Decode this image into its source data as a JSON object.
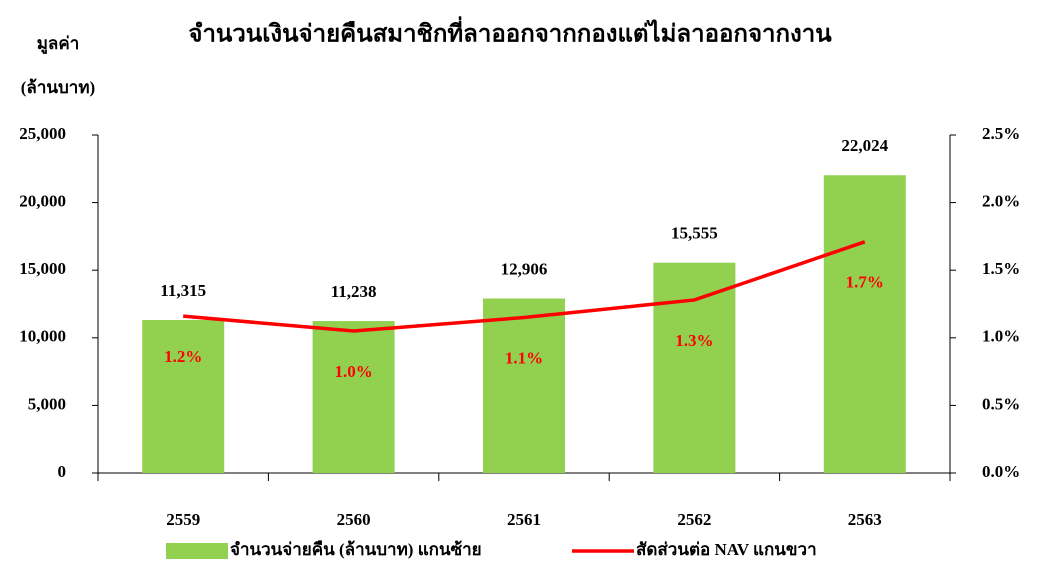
{
  "chart_data": {
    "type": "bar",
    "title": "จำนวนเงินจ่ายคืนสมาชิกที่ลาออกจากกองแต่ไม่ลาออกจากงาน",
    "ylabel": [
      "มูลค่า",
      "(ล้านบาท)"
    ],
    "categories": [
      "2559",
      "2560",
      "2561",
      "2562",
      "2563"
    ],
    "series": [
      {
        "name": "จำนวนจ่ายคืน (ล้านบาท) แกนซ้าย",
        "type": "bar",
        "color": "#92d050",
        "values": [
          11315,
          11238,
          12906,
          15555,
          22024
        ],
        "value_labels": [
          "11,315",
          "11,238",
          "12,906",
          "15,555",
          "22,024"
        ]
      },
      {
        "name": "สัดส่วนต่อ NAV แกนขวา",
        "type": "line",
        "axis": "y2",
        "color": "#ff0000",
        "values": [
          1.16,
          1.05,
          1.15,
          1.28,
          1.71
        ],
        "value_labels": [
          "1.2%",
          "1.0%",
          "1.1%",
          "1.3%",
          "1.7%"
        ]
      }
    ],
    "ylim": [
      0,
      25000
    ],
    "yticks": [
      0,
      {
        "value": 5000,
        "label": "5,000"
      },
      {
        "value": 10000,
        "label": "10,000"
      },
      {
        "value": 15000,
        "label": "15,000"
      },
      {
        "value": 20000,
        "label": "20,000"
      },
      {
        "value": 25000,
        "label": "25,000"
      }
    ],
    "y2lim": [
      0,
      2.5
    ],
    "y2ticks": [
      {
        "value": 0,
        "label": "0.0%"
      },
      {
        "value": 0.5,
        "label": "0.5%"
      },
      {
        "value": 1,
        "label": "1.0%"
      },
      {
        "value": 1.5,
        "label": "1.5%"
      },
      {
        "value": 2,
        "label": "2.0%"
      },
      {
        "value": 2.5,
        "label": "2.5%"
      }
    ],
    "legend": "bottom"
  }
}
